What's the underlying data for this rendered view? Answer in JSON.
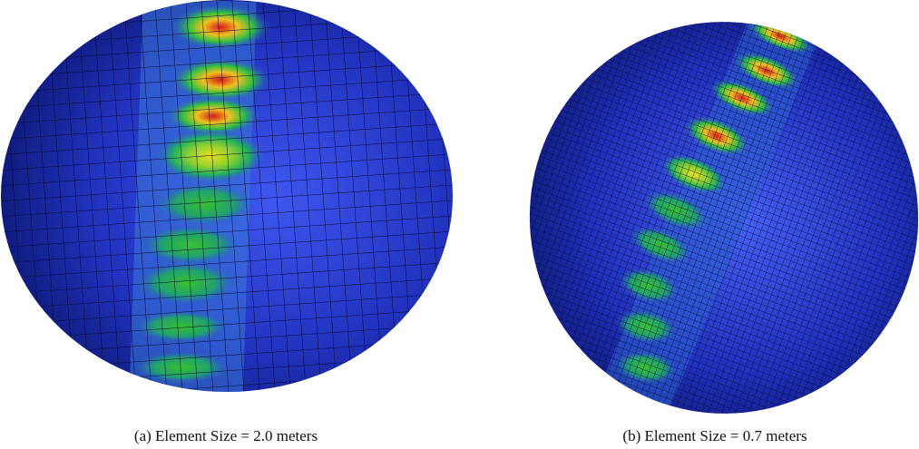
{
  "figure": {
    "captions": [
      "(a) Element Size = 2.0 meters",
      "(b) Element Size = 0.7 meters"
    ]
  }
}
